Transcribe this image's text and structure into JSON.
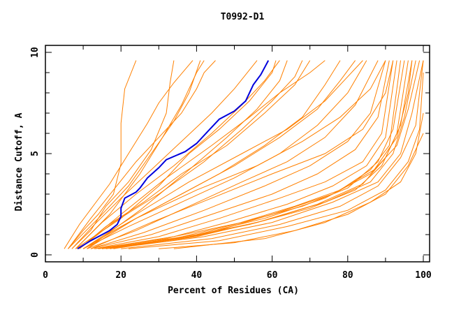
{
  "chart_data": {
    "type": "line",
    "title": "T0992-D1",
    "xlabel": "Percent of Residues (CA)",
    "ylabel": "Distance Cutoff, A",
    "xlim": [
      0,
      100
    ],
    "ylim": [
      0,
      10
    ],
    "xticks": [
      "0",
      "20",
      "40",
      "60",
      "80",
      "100"
    ],
    "yticks": [
      "0",
      "5",
      "10"
    ],
    "grid": false,
    "colors": {
      "models": "#ff8000",
      "highlight": "#0000dd"
    },
    "highlight": {
      "points": [
        [
          8.5,
          0.3
        ],
        [
          12,
          0.7
        ],
        [
          17,
          1.2
        ],
        [
          19,
          1.5
        ],
        [
          20,
          1.9
        ],
        [
          20,
          2.3
        ],
        [
          21,
          2.8
        ],
        [
          24,
          3.1
        ],
        [
          25,
          3.3
        ],
        [
          27,
          3.8
        ],
        [
          30,
          4.3
        ],
        [
          32,
          4.7
        ],
        [
          37,
          5.1
        ],
        [
          40,
          5.5
        ],
        [
          43,
          6.1
        ],
        [
          46,
          6.7
        ],
        [
          50,
          7.1
        ],
        [
          53,
          7.6
        ],
        [
          55,
          8.4
        ],
        [
          57,
          8.9
        ],
        [
          59,
          9.6
        ]
      ]
    },
    "series": [
      {
        "points": [
          [
            6,
            0.3
          ],
          [
            10,
            1.2
          ],
          [
            14,
            2
          ],
          [
            18,
            3
          ],
          [
            20,
            4.5
          ],
          [
            20,
            6.5
          ],
          [
            21,
            8.2
          ],
          [
            24,
            9.6
          ]
        ]
      },
      {
        "points": [
          [
            5,
            0.3
          ],
          [
            9,
            1.5
          ],
          [
            13,
            2.5
          ],
          [
            17,
            3.5
          ],
          [
            22,
            5
          ],
          [
            27,
            6.5
          ],
          [
            30,
            7.5
          ],
          [
            34,
            8.5
          ],
          [
            39,
            9.6
          ]
        ]
      },
      {
        "points": [
          [
            6,
            0.3
          ],
          [
            12,
            1.8
          ],
          [
            18,
            3.2
          ],
          [
            24,
            4.6
          ],
          [
            30,
            5.8
          ],
          [
            36,
            7
          ],
          [
            40,
            8.2
          ],
          [
            42,
            9
          ],
          [
            45,
            9.6
          ]
        ]
      },
      {
        "points": [
          [
            7,
            0.3
          ],
          [
            12,
            1.2
          ],
          [
            16,
            2.4
          ],
          [
            22,
            3.6
          ],
          [
            28,
            5.2
          ],
          [
            32,
            7
          ],
          [
            33,
            8.5
          ],
          [
            34,
            9.6
          ]
        ]
      },
      {
        "points": [
          [
            7,
            0.3
          ],
          [
            13,
            1.5
          ],
          [
            20,
            2.8
          ],
          [
            28,
            4.2
          ],
          [
            36,
            5.6
          ],
          [
            44,
            7
          ],
          [
            50,
            8.2
          ],
          [
            56,
            9.6
          ]
        ]
      },
      {
        "points": [
          [
            8,
            0.3
          ],
          [
            15,
            1.6
          ],
          [
            24,
            3
          ],
          [
            34,
            4.4
          ],
          [
            44,
            6
          ],
          [
            52,
            7.4
          ],
          [
            58,
            8.6
          ],
          [
            62,
            9.6
          ]
        ]
      },
      {
        "points": [
          [
            6,
            0.3
          ],
          [
            14,
            1.8
          ],
          [
            22,
            3.4
          ],
          [
            28,
            5
          ],
          [
            34,
            6.6
          ],
          [
            38,
            8
          ],
          [
            41,
            9.6
          ]
        ]
      },
      {
        "points": [
          [
            9,
            0.3
          ],
          [
            16,
            1.4
          ],
          [
            26,
            2.6
          ],
          [
            36,
            4
          ],
          [
            48,
            5.4
          ],
          [
            58,
            7
          ],
          [
            66,
            8.4
          ],
          [
            70,
            9.6
          ]
        ]
      },
      {
        "points": [
          [
            9,
            0.3
          ],
          [
            18,
            1.6
          ],
          [
            30,
            3
          ],
          [
            42,
            4.6
          ],
          [
            52,
            6.2
          ],
          [
            60,
            7.6
          ],
          [
            66,
            8.8
          ],
          [
            68,
            9.6
          ]
        ]
      },
      {
        "points": [
          [
            10,
            0.3
          ],
          [
            20,
            1.4
          ],
          [
            32,
            2.6
          ],
          [
            46,
            4
          ],
          [
            58,
            5.4
          ],
          [
            68,
            6.8
          ],
          [
            74,
            8.4
          ],
          [
            78,
            9.6
          ]
        ]
      },
      {
        "points": [
          [
            10,
            0.3
          ],
          [
            22,
            1.4
          ],
          [
            36,
            2.6
          ],
          [
            50,
            3.8
          ],
          [
            62,
            5
          ],
          [
            72,
            6.4
          ],
          [
            80,
            8
          ],
          [
            85,
            9.6
          ]
        ]
      },
      {
        "points": [
          [
            11,
            0.3
          ],
          [
            24,
            1.2
          ],
          [
            38,
            2.4
          ],
          [
            52,
            3.6
          ],
          [
            64,
            4.6
          ],
          [
            74,
            5.8
          ],
          [
            82,
            7.4
          ],
          [
            88,
            9.6
          ]
        ]
      },
      {
        "points": [
          [
            8,
            0.3
          ],
          [
            20,
            1.8
          ],
          [
            30,
            3.4
          ],
          [
            38,
            5
          ],
          [
            46,
            6.2
          ],
          [
            54,
            7.6
          ],
          [
            60,
            9
          ],
          [
            61,
            9.6
          ]
        ]
      },
      {
        "points": [
          [
            12,
            0.3
          ],
          [
            26,
            1.1
          ],
          [
            42,
            2.2
          ],
          [
            58,
            3.4
          ],
          [
            70,
            4.4
          ],
          [
            80,
            5.6
          ],
          [
            86,
            7
          ],
          [
            90,
            9.6
          ]
        ]
      },
      {
        "points": [
          [
            12,
            0.3
          ],
          [
            28,
            1
          ],
          [
            44,
            2
          ],
          [
            60,
            3
          ],
          [
            72,
            4
          ],
          [
            82,
            5.2
          ],
          [
            88,
            6.8
          ],
          [
            91,
            9.6
          ]
        ]
      },
      {
        "points": [
          [
            13,
            0.3
          ],
          [
            30,
            0.9
          ],
          [
            46,
            1.8
          ],
          [
            62,
            2.8
          ],
          [
            74,
            3.6
          ],
          [
            84,
            4.6
          ],
          [
            89,
            6
          ],
          [
            92,
            9.6
          ]
        ]
      },
      {
        "points": [
          [
            13,
            0.3
          ],
          [
            32,
            0.8
          ],
          [
            48,
            1.6
          ],
          [
            64,
            2.5
          ],
          [
            76,
            3.4
          ],
          [
            85,
            4.4
          ],
          [
            90,
            5.8
          ],
          [
            93,
            9.6
          ]
        ]
      },
      {
        "points": [
          [
            14,
            0.3
          ],
          [
            34,
            0.8
          ],
          [
            50,
            1.5
          ],
          [
            66,
            2.4
          ],
          [
            78,
            3.2
          ],
          [
            86,
            4.2
          ],
          [
            91,
            5.4
          ],
          [
            94,
            9.6
          ]
        ]
      },
      {
        "points": [
          [
            14,
            0.3
          ],
          [
            34,
            0.9
          ],
          [
            52,
            1.6
          ],
          [
            68,
            2.4
          ],
          [
            80,
            3.3
          ],
          [
            88,
            4.6
          ],
          [
            92,
            6.2
          ],
          [
            95,
            9.6
          ]
        ]
      },
      {
        "points": [
          [
            15,
            0.3
          ],
          [
            36,
            0.8
          ],
          [
            54,
            1.5
          ],
          [
            70,
            2.3
          ],
          [
            82,
            3.2
          ],
          [
            89,
            4.4
          ],
          [
            93,
            6
          ],
          [
            96,
            9.6
          ]
        ]
      },
      {
        "points": [
          [
            15,
            0.3
          ],
          [
            38,
            0.9
          ],
          [
            56,
            1.6
          ],
          [
            72,
            2.5
          ],
          [
            84,
            3.5
          ],
          [
            90,
            4.8
          ],
          [
            94,
            6.4
          ],
          [
            97,
            9.6
          ]
        ]
      },
      {
        "points": [
          [
            16,
            0.3
          ],
          [
            40,
            0.9
          ],
          [
            58,
            1.7
          ],
          [
            74,
            2.6
          ],
          [
            86,
            3.6
          ],
          [
            92,
            5
          ],
          [
            95,
            6.8
          ],
          [
            98,
            9.6
          ]
        ]
      },
      {
        "points": [
          [
            16,
            0.3
          ],
          [
            40,
            1
          ],
          [
            58,
            1.8
          ],
          [
            74,
            2.8
          ],
          [
            86,
            4
          ],
          [
            93,
            5.4
          ],
          [
            96,
            7.2
          ],
          [
            99,
            9.6
          ]
        ]
      },
      {
        "points": [
          [
            17,
            0.3
          ],
          [
            42,
            0.9
          ],
          [
            60,
            1.6
          ],
          [
            76,
            2.6
          ],
          [
            88,
            3.6
          ],
          [
            94,
            5
          ],
          [
            97,
            7
          ],
          [
            100,
            9.6
          ]
        ]
      },
      {
        "points": [
          [
            20,
            0.3
          ],
          [
            44,
            0.8
          ],
          [
            62,
            1.5
          ],
          [
            78,
            2.4
          ],
          [
            88,
            3.4
          ],
          [
            94,
            4.8
          ],
          [
            98,
            6.4
          ],
          [
            100,
            9.6
          ]
        ]
      },
      {
        "points": [
          [
            22,
            0.3
          ],
          [
            46,
            0.7
          ],
          [
            64,
            1.4
          ],
          [
            80,
            2.2
          ],
          [
            90,
            3.2
          ],
          [
            96,
            4.6
          ],
          [
            99,
            6.2
          ],
          [
            100,
            9
          ]
        ]
      },
      {
        "points": [
          [
            10,
            0.3
          ],
          [
            22,
            1.6
          ],
          [
            36,
            3
          ],
          [
            50,
            4.4
          ],
          [
            62,
            5.8
          ],
          [
            72,
            7.2
          ],
          [
            78,
            8.6
          ],
          [
            82,
            9.6
          ]
        ]
      },
      {
        "points": [
          [
            11,
            0.3
          ],
          [
            24,
            1.8
          ],
          [
            40,
            3.2
          ],
          [
            56,
            4.4
          ],
          [
            68,
            5.6
          ],
          [
            78,
            6.8
          ],
          [
            86,
            8.2
          ],
          [
            90,
            9.6
          ]
        ]
      },
      {
        "points": [
          [
            10,
            0.3
          ],
          [
            24,
            2
          ],
          [
            38,
            3.6
          ],
          [
            52,
            5
          ],
          [
            64,
            6.2
          ],
          [
            74,
            7.6
          ],
          [
            80,
            8.8
          ],
          [
            84,
            9.6
          ]
        ]
      },
      {
        "points": [
          [
            9,
            0.3
          ],
          [
            20,
            2
          ],
          [
            32,
            3.8
          ],
          [
            44,
            5.4
          ],
          [
            54,
            6.8
          ],
          [
            62,
            8
          ],
          [
            70,
            9
          ],
          [
            74,
            9.6
          ]
        ]
      },
      {
        "points": [
          [
            12,
            0.3
          ],
          [
            28,
            1.6
          ],
          [
            44,
            2.8
          ],
          [
            60,
            4
          ],
          [
            74,
            5
          ],
          [
            84,
            6.2
          ],
          [
            90,
            8
          ],
          [
            92,
            9.6
          ]
        ]
      },
      {
        "points": [
          [
            30,
            0.3
          ],
          [
            50,
            0.6
          ],
          [
            66,
            1.2
          ],
          [
            80,
            2
          ],
          [
            90,
            3
          ],
          [
            96,
            4.4
          ],
          [
            100,
            6
          ]
        ]
      },
      {
        "points": [
          [
            34,
            0.3
          ],
          [
            58,
            0.8
          ],
          [
            74,
            1.6
          ],
          [
            86,
            2.6
          ],
          [
            94,
            3.6
          ],
          [
            98,
            5
          ],
          [
            100,
            7
          ]
        ]
      },
      {
        "points": [
          [
            18,
            0.3
          ],
          [
            42,
            1
          ],
          [
            60,
            2
          ],
          [
            76,
            3
          ],
          [
            87,
            4.2
          ],
          [
            93,
            5.8
          ],
          [
            96,
            8
          ],
          [
            97,
            9.6
          ]
        ]
      },
      {
        "points": [
          [
            8,
            0.3
          ],
          [
            17,
            2
          ],
          [
            25,
            4
          ],
          [
            31,
            5.8
          ],
          [
            36,
            7.4
          ],
          [
            40,
            9
          ],
          [
            42,
            9.6
          ]
        ]
      },
      {
        "points": [
          [
            11,
            0.3
          ],
          [
            25,
            2.2
          ],
          [
            38,
            4.2
          ],
          [
            48,
            5.8
          ],
          [
            56,
            7.2
          ],
          [
            62,
            8.6
          ],
          [
            64,
            9.6
          ]
        ]
      }
    ]
  }
}
